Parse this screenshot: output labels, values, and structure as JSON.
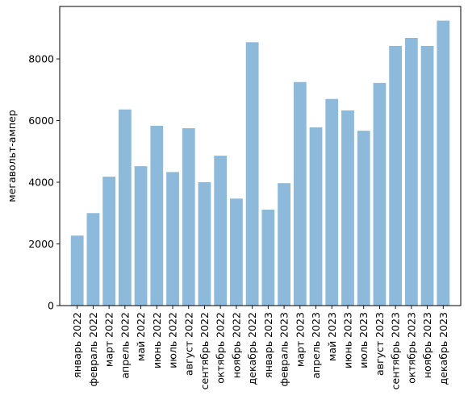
{
  "chart_data": {
    "type": "bar",
    "title": "",
    "xlabel": "",
    "ylabel": "мегавольт-ампер",
    "ylim": [
      0,
      9700
    ],
    "yticks": [
      0,
      2000,
      4000,
      6000,
      8000
    ],
    "grid": false,
    "bar_color": "#8db9da",
    "categories": [
      "январь 2022",
      "февраль 2022",
      "март 2022",
      "апрель 2022",
      "май 2022",
      "июнь 2022",
      "июль 2022",
      "август 2022",
      "сентябрь 2022",
      "октябрь 2022",
      "ноябрь 2022",
      "декабрь 2022",
      "январь 2023",
      "февраль 2023",
      "март 2023",
      "апрель 2023",
      "май 2023",
      "июнь 2023",
      "июль 2023",
      "август 2023",
      "сентябрь 2023",
      "октябрь 2023",
      "ноябрь 2023",
      "декабрь 2023"
    ],
    "values": [
      2270,
      3000,
      4180,
      6360,
      4520,
      5830,
      4330,
      5750,
      4000,
      4860,
      3470,
      8540,
      3110,
      3970,
      7250,
      5780,
      6700,
      6330,
      5670,
      7220,
      8420,
      8680,
      8420,
      9240
    ]
  }
}
